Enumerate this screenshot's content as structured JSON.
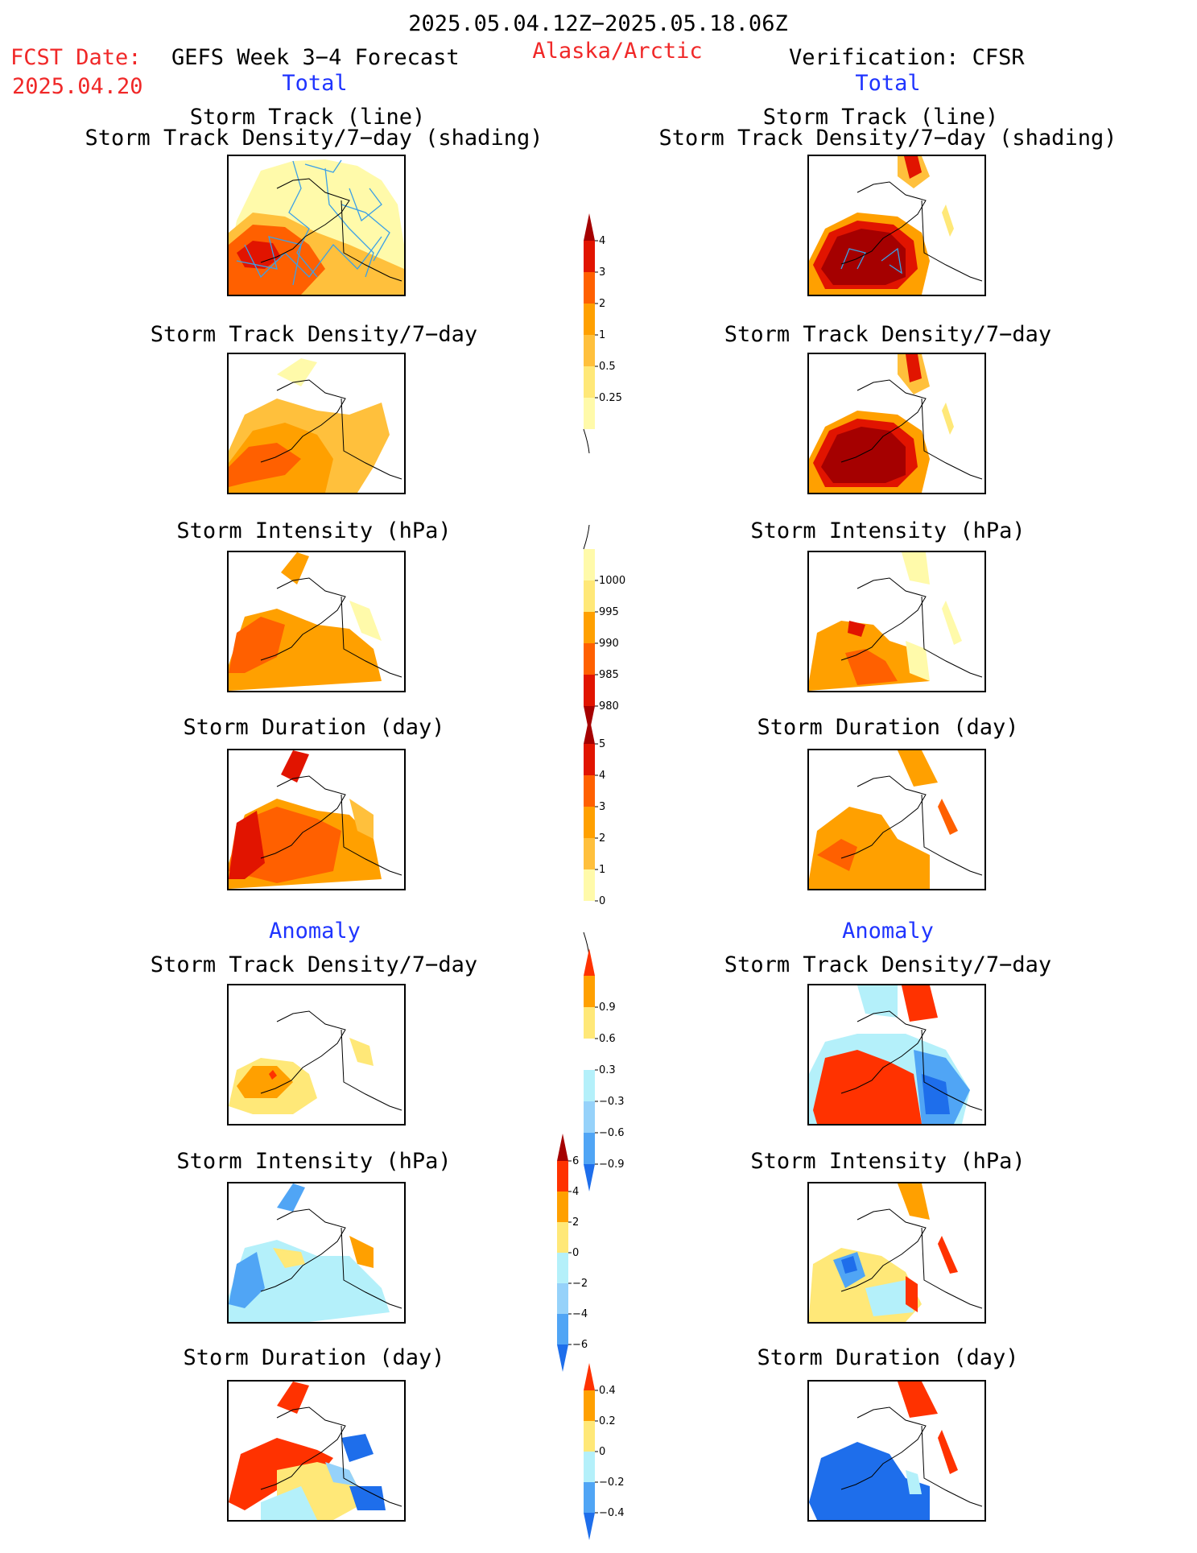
{
  "header": {
    "date_range": "2025.05.04.12Z−2025.05.18.06Z",
    "fcst_label": "FCST Date:",
    "fcst_date": "2025.04.20",
    "left_title": "GEFS Week 3−4 Forecast",
    "region": "Alaska/Arctic",
    "right_title": "Verification: CFSR",
    "left_total": "Total",
    "right_total": "Total"
  },
  "panel_titles": {
    "track_line": "Storm Track (line)",
    "track_density_shading": "Storm Track Density/7−day (shading)",
    "track_density": "Storm Track Density/7−day",
    "intensity": "Storm Intensity (hPa)",
    "duration": "Storm Duration (day)",
    "anomaly": "Anomaly"
  },
  "colorbars": {
    "density": {
      "ticks": [
        "0.25",
        "0.5",
        "1",
        "2",
        "3",
        "4"
      ],
      "colors": [
        "#fffaaa",
        "#ffe878",
        "#ffc03c",
        "#ffa000",
        "#ff6000",
        "#e11400",
        "#a50000"
      ]
    },
    "intensity": {
      "ticks": [
        "1000",
        "995",
        "990",
        "985",
        "980"
      ],
      "colors": [
        "#fffaaa",
        "#ffe878",
        "#ffa000",
        "#ff6000",
        "#e11400",
        "#a50000"
      ]
    },
    "duration": {
      "ticks": [
        "0",
        "1",
        "2",
        "3",
        "4",
        "5"
      ],
      "colors": [
        "#ffffff",
        "#fffaaa",
        "#ffc03c",
        "#ffa000",
        "#ff6000",
        "#e11400",
        "#a50000"
      ]
    },
    "density_anom": {
      "ticks": [
        "−0.9",
        "−0.6",
        "−0.3",
        "0.3",
        "0.6",
        "0.9"
      ],
      "colors": [
        "#1e6eeb",
        "#50a5f5",
        "#96d2fa",
        "#b4f0fa",
        "#ffffff",
        "#ffe878",
        "#ffa000",
        "#ff3200"
      ]
    },
    "intensity_anom": {
      "ticks": [
        "−6",
        "−4",
        "−2",
        "0",
        "2",
        "4",
        "6"
      ],
      "colors": [
        "#1e6eeb",
        "#50a5f5",
        "#96d2fa",
        "#b4f0fa",
        "#ffe878",
        "#ffa000",
        "#ff3200",
        "#a50000"
      ]
    },
    "duration_anom": {
      "ticks": [
        "−0.4",
        "−0.2",
        "0",
        "0.2",
        "0.4"
      ],
      "colors": [
        "#1e6eeb",
        "#50a5f5",
        "#b4f0fa",
        "#ffe878",
        "#ffa000",
        "#ff3200"
      ]
    }
  },
  "colors": {
    "text_red": "#f02828",
    "text_blue": "#1f34ff",
    "track_line": "#3ca0e6"
  }
}
